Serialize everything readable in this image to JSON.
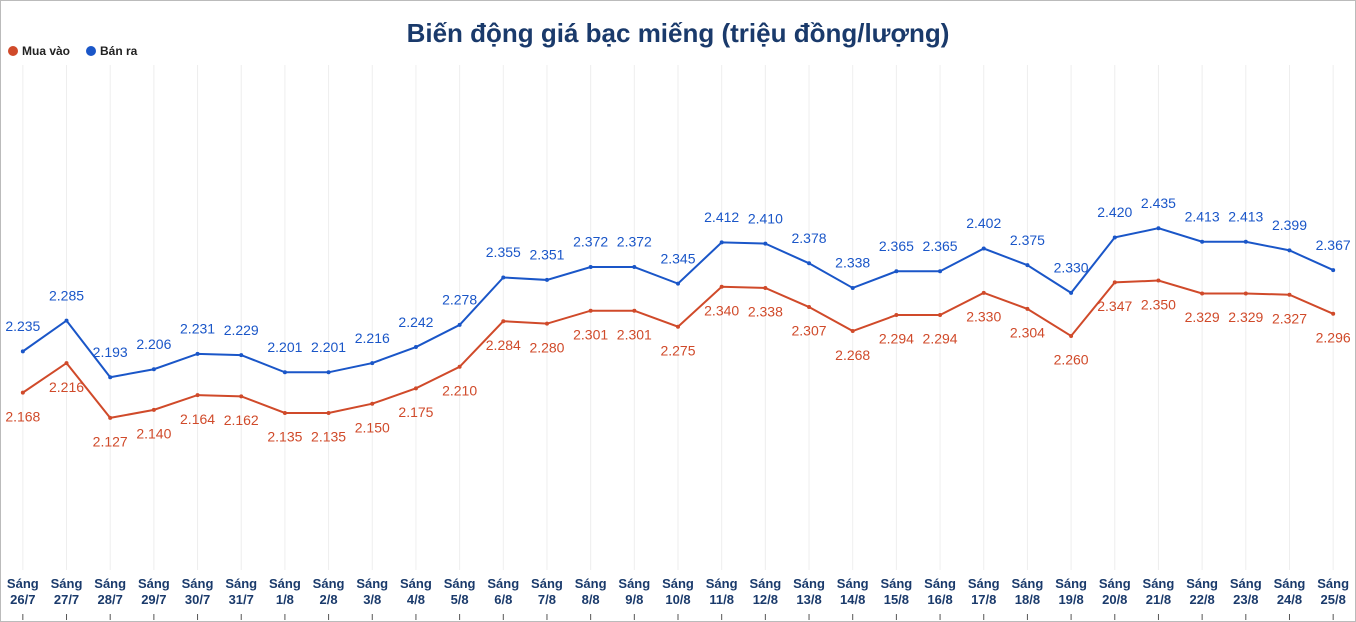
{
  "chart_data": {
    "type": "line",
    "title": "Biến động giá bạc miếng (triệu đồng/lượng)",
    "categories": [
      "Sáng 26/7",
      "Sáng 27/7",
      "Sáng 28/7",
      "Sáng 29/7",
      "Sáng 30/7",
      "Sáng 31/7",
      "Sáng 1/8",
      "Sáng 2/8",
      "Sáng 3/8",
      "Sáng 4/8",
      "Sáng 5/8",
      "Sáng 6/8",
      "Sáng 7/8",
      "Sáng 8/8",
      "Sáng 9/8",
      "Sáng 10/8",
      "Sáng 11/8",
      "Sáng 12/8",
      "Sáng 13/8",
      "Sáng 14/8",
      "Sáng 15/8",
      "Sáng 16/8",
      "Sáng 17/8",
      "Sáng 18/8",
      "Sáng 19/8",
      "Sáng 20/8",
      "Sáng 21/8",
      "Sáng 22/8",
      "Sáng 23/8",
      "Sáng 24/8",
      "Sáng 25/8"
    ],
    "series": [
      {
        "name": "Mua vào",
        "color": "#d04a2a",
        "label_position": "below",
        "values": [
          2.168,
          2.216,
          2.127,
          2.14,
          2.164,
          2.162,
          2.135,
          2.135,
          2.15,
          2.175,
          2.21,
          2.284,
          2.28,
          2.301,
          2.301,
          2.275,
          2.34,
          2.338,
          2.307,
          2.268,
          2.294,
          2.294,
          2.33,
          2.304,
          2.26,
          2.347,
          2.35,
          2.329,
          2.329,
          2.327,
          2.296
        ],
        "value_labels": [
          "2.168",
          "2.216",
          "2.127",
          "2.140",
          "2.164",
          "2.162",
          "2.135",
          "2.135",
          "2.150",
          "2.175",
          "2.210",
          "2.284",
          "2.280",
          "2.301",
          "2.301",
          "2.275",
          "2.340",
          "2.338",
          "2.307",
          "2.268",
          "2.294",
          "2.294",
          "2.330",
          "2.304",
          "2.260",
          "2.347",
          "2.350",
          "2.329",
          "2.329",
          "2.327",
          "2.296"
        ]
      },
      {
        "name": "Bán ra",
        "color": "#1a56c8",
        "label_position": "above",
        "values": [
          2.235,
          2.285,
          2.193,
          2.206,
          2.231,
          2.229,
          2.201,
          2.201,
          2.216,
          2.242,
          2.278,
          2.355,
          2.351,
          2.372,
          2.372,
          2.345,
          2.412,
          2.41,
          2.378,
          2.338,
          2.365,
          2.365,
          2.402,
          2.375,
          2.33,
          2.42,
          2.435,
          2.413,
          2.413,
          2.399,
          2.367
        ],
        "value_labels": [
          "2.235",
          "2.285",
          "2.193",
          "2.206",
          "2.231",
          "2.229",
          "2.201",
          "2.201",
          "2.216",
          "2.242",
          "2.278",
          "2.355",
          "2.351",
          "2.372",
          "2.372",
          "2.345",
          "2.412",
          "2.410",
          "2.378",
          "2.338",
          "2.365",
          "2.365",
          "2.402",
          "2.375",
          "2.330",
          "2.420",
          "2.435",
          "2.413",
          "2.413",
          "2.399",
          "2.367"
        ]
      }
    ],
    "ylim": [
      1.88,
      2.7
    ],
    "grid": true,
    "legend": "top-left"
  }
}
